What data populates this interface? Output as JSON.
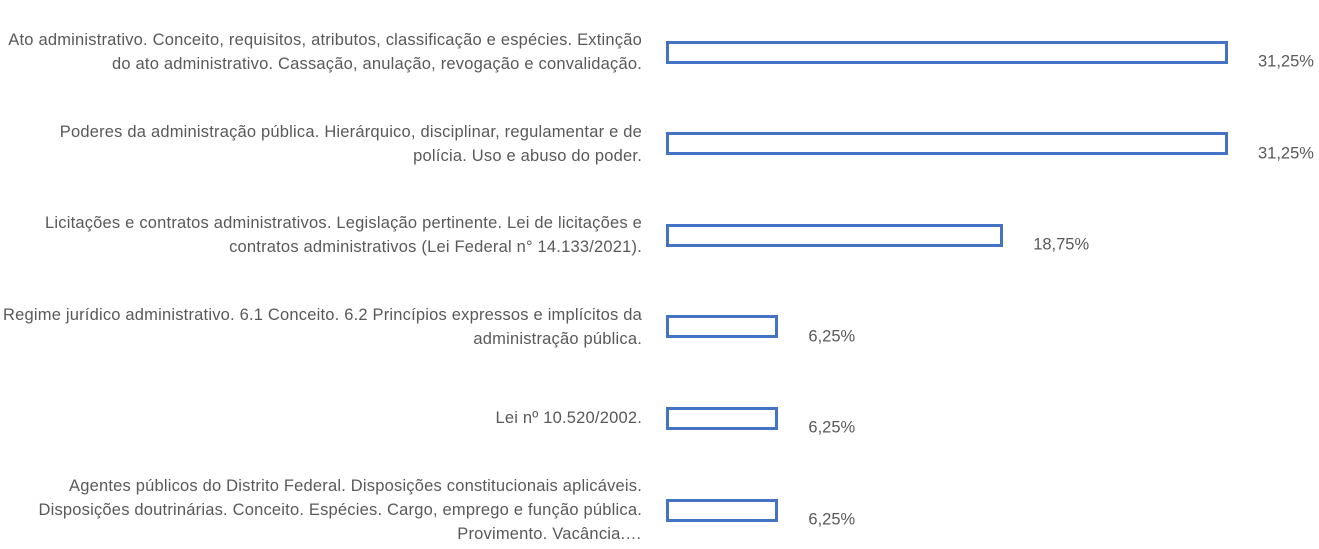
{
  "chart_data": {
    "type": "bar",
    "orientation": "horizontal",
    "categories": [
      "Ato administrativo. Conceito, requisitos, atributos, classificação e espécies. Extinção do ato administrativo. Cassação, anulação, revogação e convalidação.",
      "Poderes da administração pública. Hierárquico, disciplinar, regulamentar e de polícia. Uso e abuso do poder.",
      "Licitações e contratos administrativos. Legislação pertinente. Lei de licitações e contratos administrativos (Lei Federal n° 14.133/2021).",
      "Regime jurídico administrativo. 6.1 Conceito. 6.2 Princípios expressos e implícitos da administração pública.",
      "Lei nº 10.520/2002.",
      "Agentes públicos do Distrito Federal. Disposições constitucionais aplicáveis. Disposições doutrinárias. Conceito. Espécies. Cargo, emprego e função pública. Provimento. Vacância.…"
    ],
    "values": [
      31.25,
      31.25,
      18.75,
      6.25,
      6.25,
      6.25
    ],
    "value_labels": [
      "31,25%",
      "31,25%",
      "18,75%",
      "6,25%",
      "6,25%",
      "6,25%"
    ],
    "color": "#4472c4"
  }
}
